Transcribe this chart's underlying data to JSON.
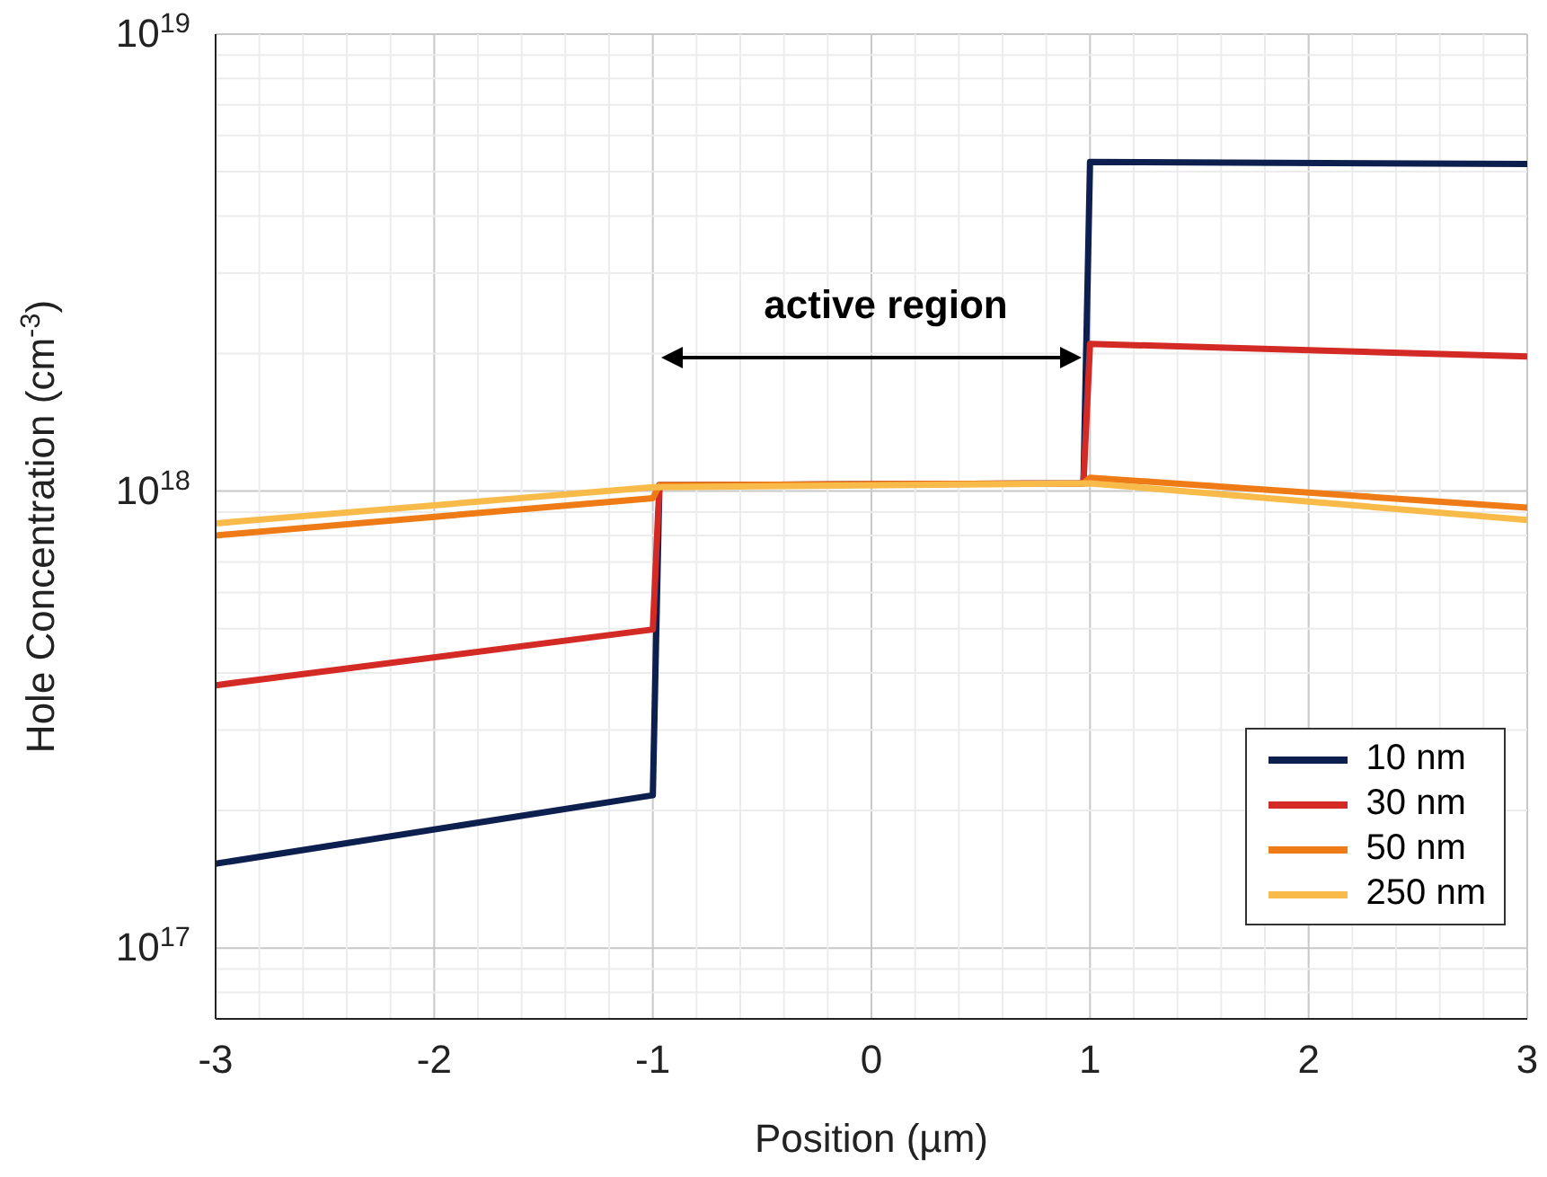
{
  "chart_data": {
    "type": "line",
    "xlabel": "Position (µm)",
    "ylabel": "Hole Concentration (cm$^{-3}$)",
    "xlim": [
      -3,
      3
    ],
    "xticks": [
      -3,
      -2,
      -1,
      0,
      1,
      2,
      3
    ],
    "ylim": [
      7e+16,
      1e+19
    ],
    "yticks": [
      {
        "value": 1e+17,
        "label": "10$^{17}$"
      },
      {
        "value": 1e+18,
        "label": "10$^{18}$"
      },
      {
        "value": 1e+19,
        "label": "10$^{19}$"
      }
    ],
    "log": "y",
    "grid": true,
    "legend": "bottom right",
    "line_style": "solid",
    "marker": "none",
    "annotations": [
      "active region"
    ],
    "series": [
      {
        "name": "10 nm",
        "color": "#0d1f4f",
        "x": [
          -3,
          -1,
          -0.97,
          0.97,
          1.0,
          3
        ],
        "values": [
          1.53e+17,
          2.16e+17,
          1.03e+18,
          1.04e+18,
          5.25e+18,
          5.2e+18
        ]
      },
      {
        "name": "30 nm",
        "color": "#d42a25",
        "x": [
          -3,
          -1,
          -0.97,
          0.97,
          1.0,
          3
        ],
        "values": [
          3.76e+17,
          4.98e+17,
          1.03e+18,
          1.04e+18,
          2.1e+18,
          1.97e+18
        ]
      },
      {
        "name": "50 nm",
        "color": "#ee7b16",
        "x": [
          -3,
          -1,
          -0.97,
          0.97,
          1.0,
          3
        ],
        "values": [
          8e+17,
          9.65e+17,
          1.03e+18,
          1.04e+18,
          1.07e+18,
          9.2e+17
        ]
      },
      {
        "name": "250 nm",
        "color": "#f8bb4a",
        "x": [
          -3,
          -1,
          1,
          3
        ],
        "values": [
          8.5e+17,
          1.02e+18,
          1.04e+18,
          8.65e+17
        ]
      }
    ]
  }
}
